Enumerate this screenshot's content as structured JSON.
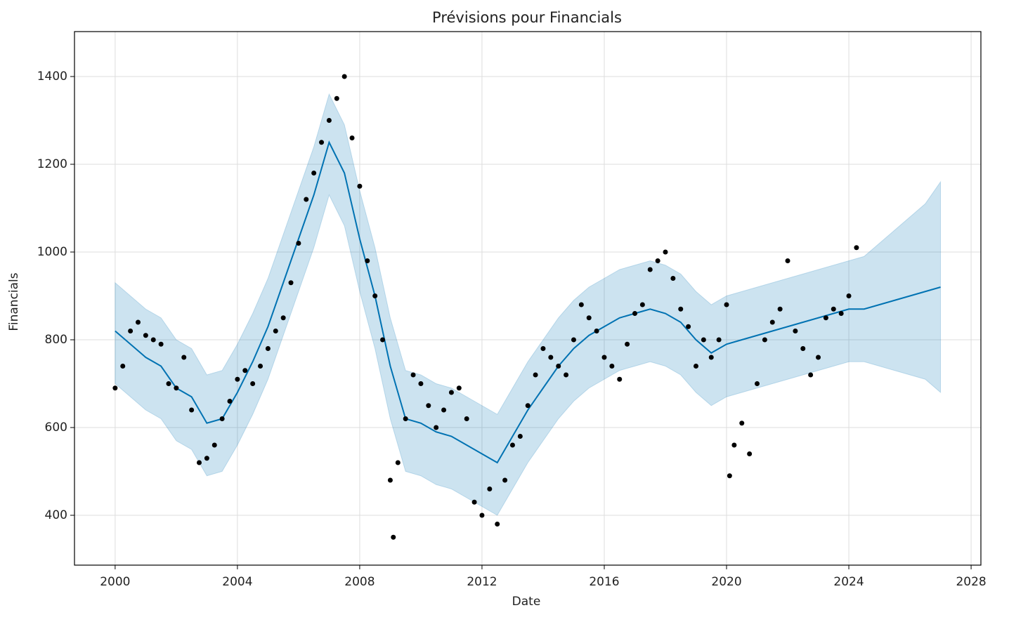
{
  "chart_data": {
    "type": "forecast",
    "title": "Prévisions pour Financials",
    "xlabel": "Date",
    "ylabel": "Financials",
    "xlim": [
      1998.67,
      2028.32
    ],
    "ylim": [
      286.4,
      1502.4
    ],
    "xticks": [
      2000,
      2004,
      2008,
      2012,
      2016,
      2020,
      2024,
      2028
    ],
    "yticks": [
      400,
      600,
      800,
      1000,
      1200,
      1400
    ],
    "grid": true,
    "band": {
      "color": "#0072B2",
      "x": [
        2000,
        2000.5,
        2001,
        2001.5,
        2002,
        2002.5,
        2003,
        2003.5,
        2004,
        2004.5,
        2005,
        2005.5,
        2006,
        2006.5,
        2007,
        2007.5,
        2008,
        2008.5,
        2009,
        2009.5,
        2010,
        2010.5,
        2011,
        2011.5,
        2012,
        2012.5,
        2013,
        2013.5,
        2014,
        2014.5,
        2015,
        2015.5,
        2016,
        2016.5,
        2017,
        2017.5,
        2018,
        2018.5,
        2019,
        2019.5,
        2020,
        2020.5,
        2021,
        2021.5,
        2022,
        2022.5,
        2023,
        2023.5,
        2024,
        2024.5,
        2025,
        2025.5,
        2026,
        2026.5,
        2027
      ],
      "lower": [
        700,
        670,
        640,
        620,
        570,
        550,
        490,
        500,
        560,
        630,
        710,
        810,
        910,
        1010,
        1130,
        1060,
        910,
        780,
        620,
        500,
        490,
        470,
        460,
        440,
        420,
        400,
        460,
        520,
        570,
        620,
        660,
        690,
        710,
        730,
        740,
        750,
        740,
        720,
        680,
        650,
        670,
        680,
        690,
        700,
        710,
        720,
        730,
        740,
        750,
        750,
        740,
        730,
        720,
        710,
        680
      ],
      "upper": [
        930,
        900,
        870,
        850,
        800,
        780,
        720,
        730,
        790,
        860,
        940,
        1040,
        1140,
        1240,
        1360,
        1290,
        1140,
        1010,
        850,
        730,
        720,
        700,
        690,
        670,
        650,
        630,
        690,
        750,
        800,
        850,
        890,
        920,
        940,
        960,
        970,
        980,
        970,
        950,
        910,
        880,
        900,
        910,
        920,
        930,
        940,
        950,
        960,
        970,
        980,
        990,
        1020,
        1050,
        1080,
        1110,
        1160
      ]
    },
    "forecast": {
      "color": "#0072B2",
      "x": [
        2000,
        2000.5,
        2001,
        2001.5,
        2002,
        2002.5,
        2003,
        2003.5,
        2004,
        2004.5,
        2005,
        2005.5,
        2006,
        2006.5,
        2007,
        2007.5,
        2008,
        2008.5,
        2009,
        2009.5,
        2010,
        2010.5,
        2011,
        2011.5,
        2012,
        2012.5,
        2013,
        2013.5,
        2014,
        2014.5,
        2015,
        2015.5,
        2016,
        2016.5,
        2017,
        2017.5,
        2018,
        2018.5,
        2019,
        2019.5,
        2020,
        2020.5,
        2021,
        2021.5,
        2022,
        2022.5,
        2023,
        2023.5,
        2024,
        2024.5,
        2025,
        2025.5,
        2026,
        2026.5,
        2027
      ],
      "values": [
        820,
        790,
        760,
        740,
        690,
        670,
        610,
        620,
        680,
        750,
        830,
        930,
        1030,
        1130,
        1250,
        1180,
        1030,
        900,
        740,
        620,
        610,
        590,
        580,
        560,
        540,
        520,
        580,
        640,
        690,
        740,
        780,
        810,
        830,
        850,
        860,
        870,
        860,
        840,
        800,
        770,
        790,
        800,
        810,
        820,
        830,
        840,
        850,
        860,
        870,
        870,
        880,
        890,
        900,
        910,
        920
      ]
    },
    "observed": {
      "color": "#000000",
      "x": [
        2000,
        2000.25,
        2000.5,
        2000.75,
        2001,
        2001.25,
        2001.5,
        2001.75,
        2002,
        2002.25,
        2002.5,
        2002.75,
        2003,
        2003.25,
        2003.5,
        2003.75,
        2004,
        2004.25,
        2004.5,
        2004.75,
        2005,
        2005.25,
        2005.5,
        2005.75,
        2006,
        2006.25,
        2006.5,
        2006.75,
        2007,
        2007.25,
        2007.5,
        2007.75,
        2008,
        2008.25,
        2008.5,
        2008.75,
        2009,
        2009.1,
        2009.25,
        2009.5,
        2009.75,
        2010,
        2010.25,
        2010.5,
        2010.75,
        2011,
        2011.25,
        2011.5,
        2011.75,
        2012,
        2012.25,
        2012.5,
        2012.75,
        2013,
        2013.25,
        2013.5,
        2013.75,
        2014,
        2014.25,
        2014.5,
        2014.75,
        2015,
        2015.25,
        2015.5,
        2015.75,
        2016,
        2016.25,
        2016.5,
        2016.75,
        2017,
        2017.25,
        2017.5,
        2017.75,
        2018,
        2018.25,
        2018.5,
        2018.75,
        2019,
        2019.25,
        2019.5,
        2019.75,
        2020,
        2020.1,
        2020.25,
        2020.5,
        2020.75,
        2021,
        2021.25,
        2021.5,
        2021.75,
        2022,
        2022.25,
        2022.5,
        2022.75,
        2023,
        2023.25,
        2023.5,
        2023.75,
        2024,
        2024.25
      ],
      "values": [
        690,
        740,
        820,
        840,
        810,
        800,
        790,
        700,
        690,
        760,
        640,
        520,
        530,
        560,
        620,
        660,
        710,
        730,
        700,
        740,
        780,
        820,
        850,
        930,
        1020,
        1120,
        1180,
        1250,
        1300,
        1350,
        1400,
        1260,
        1150,
        980,
        900,
        800,
        480,
        350,
        520,
        620,
        720,
        700,
        650,
        600,
        640,
        680,
        690,
        620,
        430,
        400,
        460,
        380,
        480,
        560,
        580,
        650,
        720,
        780,
        760,
        740,
        720,
        800,
        880,
        850,
        820,
        760,
        740,
        710,
        790,
        860,
        880,
        960,
        980,
        1000,
        940,
        870,
        830,
        740,
        800,
        760,
        800,
        880,
        490,
        560,
        610,
        540,
        700,
        800,
        840,
        870,
        980,
        820,
        780,
        720,
        760,
        850,
        870,
        860,
        900,
        1010
      ]
    }
  }
}
